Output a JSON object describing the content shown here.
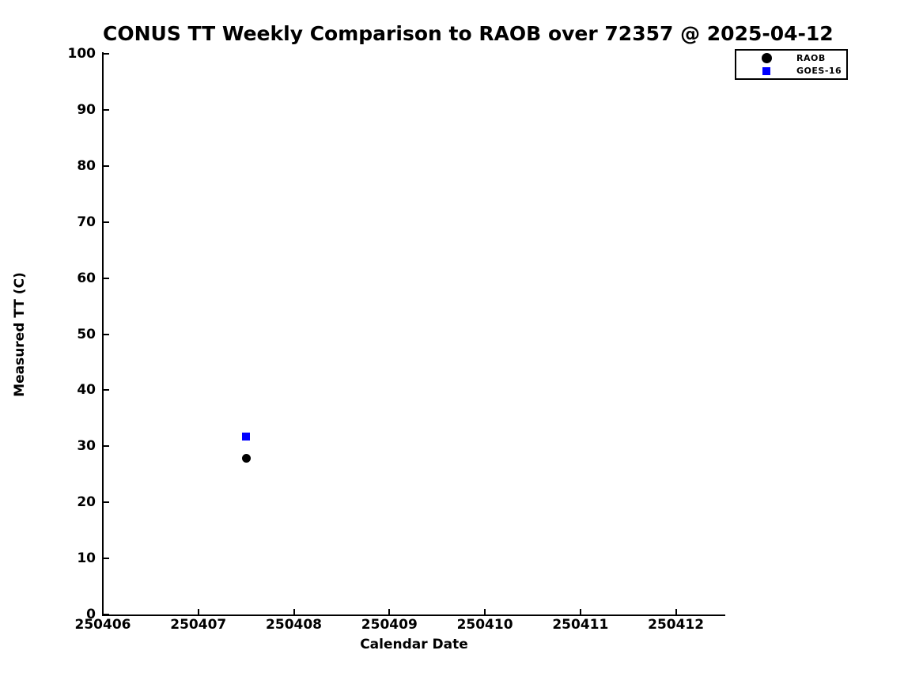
{
  "chart_data": {
    "type": "scatter",
    "title": "CONUS TT Weekly Comparison to RAOB over 72357 @ 2025-04-12",
    "xlabel": "Calendar Date",
    "ylabel": "Measured TT (C)",
    "xlim": [
      250406,
      250412.5
    ],
    "ylim": [
      0,
      100
    ],
    "xticks": [
      250406,
      250407,
      250408,
      250409,
      250410,
      250411,
      250412
    ],
    "yticks": [
      0,
      10,
      20,
      30,
      40,
      50,
      60,
      70,
      80,
      90,
      100
    ],
    "grid": false,
    "legend_position": "top-right-outside-plot",
    "background_color": "#ffffff",
    "axis_color": "#000000",
    "series": [
      {
        "name": "RAOB",
        "marker": "circle",
        "color": "#000000",
        "marker_size": 11,
        "points": [
          {
            "x": 250407.5,
            "y": 27.8
          }
        ]
      },
      {
        "name": "GOES-16",
        "marker": "square",
        "color": "#0000ff",
        "marker_size": 10,
        "points": [
          {
            "x": 250407.5,
            "y": 31.8
          }
        ]
      }
    ]
  }
}
